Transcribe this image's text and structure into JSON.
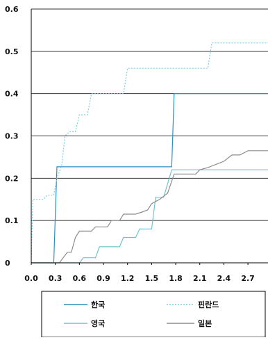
{
  "chart_data": {
    "type": "line",
    "title": "",
    "xlabel": "",
    "ylabel": "",
    "xlim": [
      0,
      2.95
    ],
    "ylim": [
      0,
      0.6
    ],
    "grid": true,
    "legend_position": "bottom",
    "x_ticks": [
      "0.0",
      "0.3",
      "0.6",
      "0.9",
      "1.2",
      "1.5",
      "1.8",
      "2.1",
      "2.4",
      "2.7"
    ],
    "y_ticks": [
      "0",
      "0.1",
      "0.2",
      "0.3",
      "0.4",
      "0.5",
      "0.6"
    ],
    "series": [
      {
        "name": "한국",
        "color": "#2a8fbd",
        "dash": "",
        "points": [
          [
            0,
            0
          ],
          [
            0.28,
            0
          ],
          [
            0.32,
            0.227
          ],
          [
            1.75,
            0.227
          ],
          [
            1.78,
            0.4
          ],
          [
            2.95,
            0.4
          ]
        ]
      },
      {
        "name": "핀란드",
        "color": "#7fcde6",
        "dash": "2,2",
        "points": [
          [
            0,
            0
          ],
          [
            0.02,
            0.15
          ],
          [
            0.15,
            0.15
          ],
          [
            0.2,
            0.16
          ],
          [
            0.28,
            0.16
          ],
          [
            0.32,
            0.2
          ],
          [
            0.38,
            0.23
          ],
          [
            0.42,
            0.3
          ],
          [
            0.48,
            0.31
          ],
          [
            0.55,
            0.31
          ],
          [
            0.6,
            0.35
          ],
          [
            0.7,
            0.35
          ],
          [
            0.75,
            0.4
          ],
          [
            1.15,
            0.4
          ],
          [
            1.2,
            0.46
          ],
          [
            2.2,
            0.46
          ],
          [
            2.25,
            0.52
          ],
          [
            2.95,
            0.52
          ]
        ]
      },
      {
        "name": "영국",
        "color": "#6ec3cc",
        "dash": "",
        "points": [
          [
            0,
            0
          ],
          [
            0.6,
            0
          ],
          [
            0.65,
            0.012
          ],
          [
            0.8,
            0.012
          ],
          [
            0.85,
            0.038
          ],
          [
            1.1,
            0.038
          ],
          [
            1.15,
            0.06
          ],
          [
            1.3,
            0.06
          ],
          [
            1.35,
            0.08
          ],
          [
            1.5,
            0.08
          ],
          [
            1.55,
            0.155
          ],
          [
            1.65,
            0.155
          ],
          [
            1.75,
            0.22
          ],
          [
            2.95,
            0.22
          ]
        ]
      },
      {
        "name": "일본",
        "color": "#8c8c8c",
        "dash": "",
        "points": [
          [
            0,
            0
          ],
          [
            0.35,
            0
          ],
          [
            0.45,
            0.025
          ],
          [
            0.5,
            0.025
          ],
          [
            0.55,
            0.06
          ],
          [
            0.6,
            0.075
          ],
          [
            0.75,
            0.075
          ],
          [
            0.8,
            0.085
          ],
          [
            0.95,
            0.085
          ],
          [
            1.0,
            0.1
          ],
          [
            1.1,
            0.1
          ],
          [
            1.15,
            0.115
          ],
          [
            1.3,
            0.115
          ],
          [
            1.38,
            0.12
          ],
          [
            1.45,
            0.125
          ],
          [
            1.5,
            0.14
          ],
          [
            1.6,
            0.15
          ],
          [
            1.7,
            0.165
          ],
          [
            1.78,
            0.21
          ],
          [
            2.05,
            0.21
          ],
          [
            2.1,
            0.22
          ],
          [
            2.2,
            0.225
          ],
          [
            2.4,
            0.24
          ],
          [
            2.5,
            0.255
          ],
          [
            2.6,
            0.255
          ],
          [
            2.7,
            0.265
          ],
          [
            2.95,
            0.265
          ]
        ]
      }
    ]
  }
}
